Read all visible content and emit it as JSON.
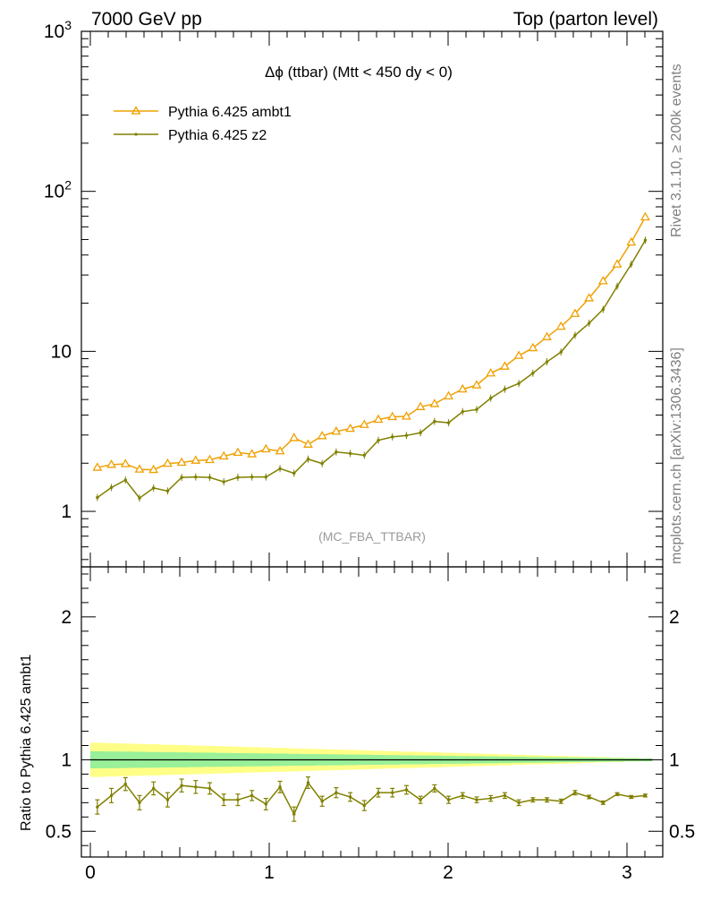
{
  "header": {
    "left": "7000 GeV pp",
    "right": "Top (parton level)"
  },
  "side_labels": {
    "top": "Rivet 3.1.10, ≥ 200k events",
    "bottom": "mcplots.cern.ch [arXiv:1306.3436]"
  },
  "plot_title": {
    "symbol": "Δϕ",
    "text": " (ttbar) (Mtt < 450 dy < 0)"
  },
  "analysis_ref": "(MC_FBA_TTBAR)",
  "colors": {
    "ambt1": "#f0a000",
    "z2": "#808000",
    "band_inner": "#99f099",
    "band_outer": "#ffff88"
  },
  "chart_data": [
    {
      "type": "line",
      "panel": "main",
      "y_scale": "log",
      "xlim": [
        -0.05,
        3.2
      ],
      "ylim": [
        0.45,
        1000
      ],
      "x_ticks": [
        0,
        1,
        2,
        3
      ],
      "y_tick_labels": [
        {
          "value": 1,
          "label": "1"
        },
        {
          "value": 10,
          "label": "10"
        },
        {
          "value": 100,
          "base": "10",
          "exp": "2"
        },
        {
          "value": 1000,
          "base": "10",
          "exp": "3"
        }
      ],
      "legend_position": "top-left",
      "x": [
        0.0393,
        0.1178,
        0.1963,
        0.2749,
        0.3534,
        0.432,
        0.5105,
        0.589,
        0.6676,
        0.7461,
        0.8247,
        0.9032,
        0.9817,
        1.0603,
        1.1388,
        1.2174,
        1.2959,
        1.3744,
        1.453,
        1.5315,
        1.6101,
        1.6886,
        1.7671,
        1.8457,
        1.9242,
        2.0028,
        2.0813,
        2.1598,
        2.2384,
        2.3169,
        2.3955,
        2.474,
        2.5525,
        2.6311,
        2.7096,
        2.7882,
        2.8667,
        2.9452,
        3.0238,
        3.1023
      ],
      "series": [
        {
          "name": "Pythia 6.425 ambt1",
          "marker": "triangle",
          "values": [
            1.88,
            1.96,
            1.98,
            1.83,
            1.82,
            1.99,
            2.02,
            2.08,
            2.1,
            2.21,
            2.33,
            2.28,
            2.45,
            2.38,
            2.88,
            2.62,
            2.96,
            3.16,
            3.29,
            3.48,
            3.75,
            3.9,
            3.92,
            4.5,
            4.7,
            5.25,
            5.8,
            6.15,
            7.3,
            8.05,
            9.4,
            10.5,
            12.3,
            14.3,
            17.2,
            21.5,
            27.5,
            35.0,
            48.0,
            69.0
          ]
        },
        {
          "name": "Pythia 6.425 z2",
          "marker": "dot",
          "values": [
            1.22,
            1.41,
            1.57,
            1.21,
            1.4,
            1.34,
            1.63,
            1.64,
            1.63,
            1.53,
            1.63,
            1.64,
            1.64,
            1.85,
            1.73,
            2.12,
            1.99,
            2.35,
            2.3,
            2.24,
            2.78,
            2.92,
            2.98,
            3.1,
            3.65,
            3.58,
            4.2,
            4.33,
            5.1,
            5.8,
            6.3,
            7.3,
            8.6,
            9.9,
            12.6,
            15.0,
            18.3,
            25.5,
            35.0,
            49.5
          ]
        }
      ]
    },
    {
      "type": "line",
      "panel": "ratio",
      "ylabel": "Ratio to Pythia 6.425 ambt1",
      "xlim": [
        -0.05,
        3.2
      ],
      "ylim": [
        0.32,
        2.35
      ],
      "x_ticks": [
        0,
        1,
        2,
        3
      ],
      "y_tick_labels": [
        {
          "value": 0.5,
          "label": "0.5"
        },
        {
          "value": 1,
          "label": "1"
        },
        {
          "value": 2,
          "label": "2"
        }
      ],
      "reference": {
        "value": 1.0,
        "band_inner_halfwidth_start": 0.06,
        "band_outer_halfwidth_start": 0.12,
        "band_halfwidth_end": 0.01
      },
      "series": [
        {
          "name": "Pythia 6.425 z2",
          "values": [
            0.67,
            0.75,
            0.83,
            0.7,
            0.8,
            0.72,
            0.82,
            0.81,
            0.8,
            0.72,
            0.72,
            0.75,
            0.69,
            0.81,
            0.62,
            0.84,
            0.71,
            0.77,
            0.74,
            0.68,
            0.77,
            0.77,
            0.79,
            0.72,
            0.8,
            0.72,
            0.75,
            0.72,
            0.73,
            0.75,
            0.7,
            0.72,
            0.72,
            0.71,
            0.77,
            0.74,
            0.7,
            0.76,
            0.74,
            0.75
          ],
          "errors": [
            0.05,
            0.05,
            0.045,
            0.05,
            0.045,
            0.05,
            0.045,
            0.045,
            0.04,
            0.04,
            0.04,
            0.035,
            0.04,
            0.04,
            0.05,
            0.04,
            0.035,
            0.035,
            0.03,
            0.035,
            0.03,
            0.03,
            0.03,
            0.025,
            0.025,
            0.025,
            0.02,
            0.02,
            0.02,
            0.02,
            0.02,
            0.015,
            0.015,
            0.015,
            0.015,
            0.012,
            0.012,
            0.01,
            0.01,
            0.01
          ]
        }
      ]
    }
  ]
}
